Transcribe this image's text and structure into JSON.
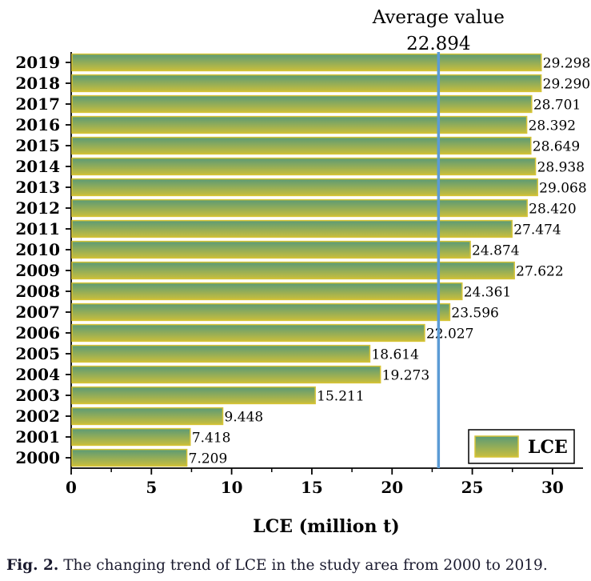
{
  "chart_data": {
    "type": "bar",
    "orientation": "horizontal",
    "categories": [
      "2000",
      "2001",
      "2002",
      "2003",
      "2004",
      "2005",
      "2006",
      "2007",
      "2008",
      "2009",
      "2010",
      "2011",
      "2012",
      "2013",
      "2014",
      "2015",
      "2016",
      "2017",
      "2018",
      "2019"
    ],
    "series": [
      {
        "name": "LCE",
        "values": [
          7.209,
          7.418,
          9.448,
          15.211,
          19.273,
          18.614,
          22.027,
          23.596,
          24.361,
          27.622,
          24.874,
          27.474,
          28.42,
          29.068,
          28.938,
          28.649,
          28.392,
          28.701,
          29.29,
          29.298
        ],
        "labels": [
          "7.209",
          "7.418",
          "9.448",
          "15.211",
          "19.273",
          "18.614",
          "22.027",
          "23.596",
          "24.361",
          "27.622",
          "24.874",
          "27.474",
          "28.420",
          "29.068",
          "28.938",
          "28.649",
          "28.392",
          "28.701",
          "29.290",
          "29.298"
        ]
      }
    ],
    "xlabel": "LCE (million t)",
    "ylabel": "",
    "xlim": [
      0,
      31.9
    ],
    "xticks": [
      0,
      5,
      10,
      15,
      20,
      25,
      30
    ],
    "average": {
      "label": "Average value",
      "value": 22.894,
      "value_label": "22.894",
      "color": "#5b9bd5"
    },
    "legend": {
      "label": "LCE",
      "position": "bottom-right"
    },
    "grid": false,
    "colors": {
      "bar_top": "#5a9a76",
      "bar_bottom": "#c8be3c",
      "bar_border": "#d6c436",
      "text": "#000000"
    }
  },
  "caption": {
    "label": "Fig. 2.",
    "text": "The changing trend of LCE in the study area from 2000 to 2019."
  }
}
